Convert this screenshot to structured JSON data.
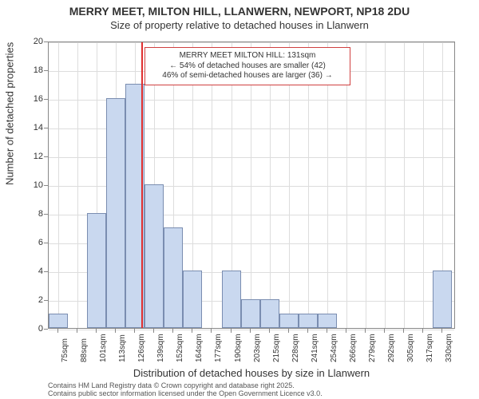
{
  "chart": {
    "type": "histogram",
    "title_line1": "MERRY MEET, MILTON HILL, LLANWERN, NEWPORT, NP18 2DU",
    "title_line2": "Size of property relative to detached houses in Llanwern",
    "title_fontsize": 14,
    "xlabel": "Distribution of detached houses by size in Llanwern",
    "ylabel": "Number of detached properties",
    "label_fontsize": 13,
    "tick_fontsize": 11,
    "background_color": "#ffffff",
    "grid_color": "#dddddd",
    "axis_color": "#888888",
    "bar_fill": "#c9d8ef",
    "bar_border": "#7a8db0",
    "bar_width_ratio": 1.0,
    "marker_color": "#e03030",
    "marker_x_value": 131,
    "xlim": [
      70,
      335
    ],
    "ylim": [
      0,
      20
    ],
    "ytick_step": 2,
    "x_categories": [
      "75sqm",
      "88sqm",
      "101sqm",
      "113sqm",
      "126sqm",
      "139sqm",
      "152sqm",
      "164sqm",
      "177sqm",
      "190sqm",
      "203sqm",
      "215sqm",
      "228sqm",
      "241sqm",
      "254sqm",
      "266sqm",
      "279sqm",
      "292sqm",
      "305sqm",
      "317sqm",
      "330sqm"
    ],
    "x_bin_starts": [
      70,
      82.5,
      95,
      107.5,
      120,
      132.5,
      145,
      157.5,
      170,
      182.5,
      195,
      207.5,
      220,
      232.5,
      245,
      257.5,
      270,
      282.5,
      295,
      307.5,
      320
    ],
    "x_bin_width": 12.5,
    "values": [
      1,
      0,
      8,
      16,
      17,
      10,
      7,
      4,
      0,
      4,
      2,
      2,
      1,
      1,
      1,
      0,
      0,
      0,
      0,
      0,
      4
    ],
    "annotation": {
      "line1": "MERRY MEET MILTON HILL: 131sqm",
      "line2": "← 54% of detached houses are smaller (42)",
      "line3": "46% of semi-detached houses are larger (36) →",
      "border_color": "#d04040",
      "fontsize": 10
    },
    "footer_line1": "Contains HM Land Registry data © Crown copyright and database right 2025.",
    "footer_line2": "Contains public sector information licensed under the Open Government Licence v3.0."
  }
}
